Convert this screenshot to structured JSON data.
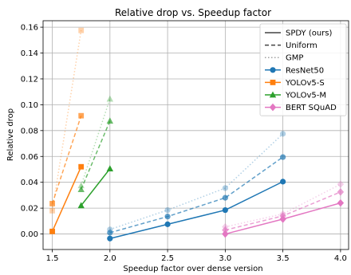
{
  "chart_data": {
    "type": "line",
    "title": "Relative drop vs. Speedup factor",
    "xlabel": "Speedup factor over dense version",
    "ylabel": "Relative drop",
    "xlim": [
      1.42,
      4.07
    ],
    "ylim": [
      -0.012,
      0.165
    ],
    "xticks": [
      1.5,
      2.0,
      2.5,
      3.0,
      3.5,
      4.0
    ],
    "xtick_labels": [
      "1.5",
      "2.0",
      "2.5",
      "3.0",
      "3.5",
      "4.0"
    ],
    "yticks": [
      0.0,
      0.02,
      0.04,
      0.06,
      0.08,
      0.1,
      0.12,
      0.14,
      0.16
    ],
    "ytick_labels": [
      "0.00",
      "0.02",
      "0.04",
      "0.06",
      "0.08",
      "0.10",
      "0.12",
      "0.14",
      "0.16"
    ],
    "grid": true,
    "legend_position": "top-right",
    "legend": {
      "methods": [
        {
          "label": "SPDY (ours)",
          "style": "solid"
        },
        {
          "label": "Uniform",
          "style": "dashed"
        },
        {
          "label": "GMP",
          "style": "dotted"
        }
      ],
      "models": [
        {
          "label": "ResNet50",
          "color": "#1f77b4",
          "marker": "circle"
        },
        {
          "label": "YOLOv5-S",
          "color": "#ff7f0e",
          "marker": "square"
        },
        {
          "label": "YOLOv5-M",
          "color": "#2ca02c",
          "marker": "triangle"
        },
        {
          "label": "BERT SQuAD",
          "color": "#e377c2",
          "marker": "diamond"
        }
      ]
    },
    "series": [
      {
        "model": "ResNet50",
        "method": "SPDY (ours)",
        "color": "#1f77b4",
        "marker": "circle",
        "style": "solid",
        "alpha": 1.0,
        "x": [
          2.0,
          2.5,
          3.0,
          3.5
        ],
        "y": [
          -0.0035,
          0.0075,
          0.0185,
          0.0405
        ]
      },
      {
        "model": "ResNet50",
        "method": "Uniform",
        "color": "#1f77b4",
        "marker": "circle",
        "style": "dashed",
        "alpha": 0.7,
        "x": [
          2.0,
          2.5,
          3.0,
          3.5
        ],
        "y": [
          0.001,
          0.0135,
          0.028,
          0.0595
        ]
      },
      {
        "model": "ResNet50",
        "method": "GMP",
        "color": "#1f77b4",
        "marker": "circle",
        "style": "dotted",
        "alpha": 0.35,
        "x": [
          2.0,
          2.5,
          3.0,
          3.5
        ],
        "y": [
          0.0035,
          0.0185,
          0.0355,
          0.0775
        ]
      },
      {
        "model": "YOLOv5-S",
        "method": "SPDY (ours)",
        "color": "#ff7f0e",
        "marker": "square",
        "style": "solid",
        "alpha": 1.0,
        "x": [
          1.5,
          1.75
        ],
        "y": [
          0.002,
          0.052
        ]
      },
      {
        "model": "YOLOv5-S",
        "method": "Uniform",
        "color": "#ff7f0e",
        "marker": "square",
        "style": "dashed",
        "alpha": 0.7,
        "x": [
          1.5,
          1.75
        ],
        "y": [
          0.0235,
          0.0915
        ]
      },
      {
        "model": "YOLOv5-S",
        "method": "GMP",
        "color": "#ff7f0e",
        "marker": "square",
        "style": "dotted",
        "alpha": 0.35,
        "x": [
          1.5,
          1.75
        ],
        "y": [
          0.018,
          0.1575
        ]
      },
      {
        "model": "YOLOv5-M",
        "method": "SPDY (ours)",
        "color": "#2ca02c",
        "marker": "triangle",
        "style": "solid",
        "alpha": 1.0,
        "x": [
          1.75,
          2.0
        ],
        "y": [
          0.022,
          0.0505
        ]
      },
      {
        "model": "YOLOv5-M",
        "method": "Uniform",
        "color": "#2ca02c",
        "marker": "triangle",
        "style": "dashed",
        "alpha": 0.7,
        "x": [
          1.75,
          2.0
        ],
        "y": [
          0.0345,
          0.0875
        ]
      },
      {
        "model": "YOLOv5-M",
        "method": "GMP",
        "color": "#2ca02c",
        "marker": "triangle",
        "style": "dotted",
        "alpha": 0.35,
        "x": [
          1.75,
          2.0
        ],
        "y": [
          0.0375,
          0.1045
        ]
      },
      {
        "model": "BERT SQuAD",
        "method": "SPDY (ours)",
        "color": "#e377c2",
        "marker": "diamond",
        "style": "solid",
        "alpha": 1.0,
        "x": [
          3.0,
          3.5,
          4.0
        ],
        "y": [
          0.0,
          0.0115,
          0.024
        ]
      },
      {
        "model": "BERT SQuAD",
        "method": "Uniform",
        "color": "#e377c2",
        "marker": "diamond",
        "style": "dashed",
        "alpha": 0.7,
        "x": [
          3.0,
          3.5,
          4.0
        ],
        "y": [
          0.003,
          0.014,
          0.0325
        ]
      },
      {
        "model": "BERT SQuAD",
        "method": "GMP",
        "color": "#e377c2",
        "marker": "diamond",
        "style": "dotted",
        "alpha": 0.35,
        "x": [
          3.0,
          3.5,
          4.0
        ],
        "y": [
          0.0055,
          0.0155,
          0.0385
        ]
      }
    ]
  }
}
